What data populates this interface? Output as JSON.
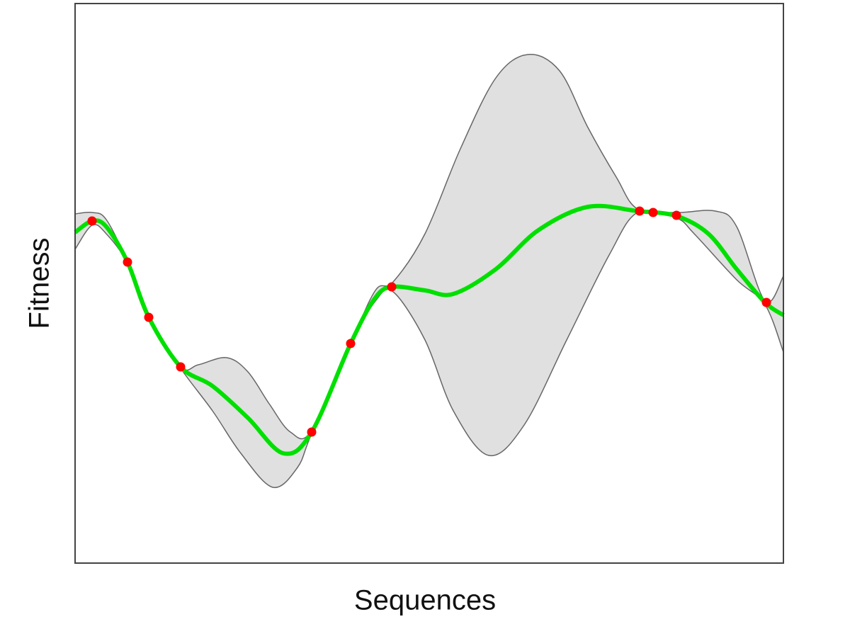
{
  "chart_data": {
    "type": "line",
    "x_label": "Sequences",
    "y_label": "Fitness",
    "xlim": [
      0,
      1000
    ],
    "ylim": [
      0,
      790
    ],
    "band": {
      "color": "#e0e0e0",
      "edge_color": "#666666",
      "upper": {
        "x": [
          0,
          24,
          44,
          74,
          104,
          149,
          174,
          214,
          244,
          274,
          304,
          334,
          389,
          424,
          449,
          494,
          544,
          594,
          639,
          684,
          724,
          764,
          794,
          849,
          904,
          934,
          974,
          1000
        ],
        "values": [
          493,
          495,
          485,
          425,
          347,
          277,
          280,
          290,
          270,
          225,
          185,
          187,
          310,
          385,
          397,
          465,
          585,
          685,
          718,
          695,
          615,
          545,
          500,
          495,
          497,
          475,
          370,
          405
        ]
      },
      "lower": {
        "x": [
          0,
          24,
          44,
          74,
          104,
          149,
          194,
          234,
          279,
          314,
          334,
          389,
          424,
          449,
          494,
          534,
          584,
          634,
          694,
          754,
          794,
          849,
          874,
          934,
          974,
          1000
        ],
        "values": [
          443,
          477,
          465,
          423,
          345,
          275,
          215,
          155,
          107,
          135,
          183,
          308,
          370,
          383,
          315,
          215,
          152,
          195,
          315,
          435,
          495,
          487,
          465,
          400,
          365,
          298
        ]
      }
    },
    "mean": {
      "color": "#00e000",
      "x": [
        0,
        24,
        44,
        74,
        104,
        149,
        194,
        244,
        294,
        334,
        389,
        424,
        449,
        494,
        534,
        594,
        654,
        724,
        794,
        849,
        894,
        934,
        974,
        1000
      ],
      "values": [
        467,
        483,
        475,
        425,
        347,
        277,
        250,
        205,
        155,
        185,
        310,
        375,
        390,
        385,
        380,
        415,
        470,
        503,
        497,
        490,
        465,
        415,
        368,
        350
      ]
    },
    "points": {
      "color": "#ff0000",
      "x": [
        24,
        74,
        104,
        149,
        334,
        389,
        447,
        797,
        816,
        849,
        976
      ],
      "values": [
        483,
        425,
        347,
        277,
        185,
        310,
        390,
        497,
        495,
        491,
        368
      ]
    }
  }
}
